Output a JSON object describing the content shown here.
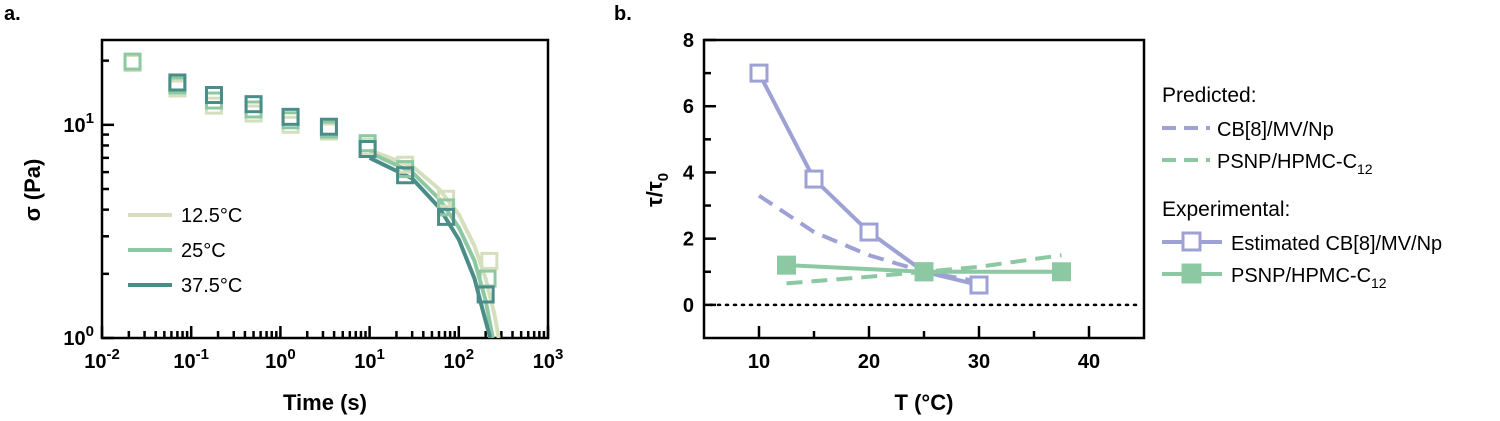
{
  "panel_labels": {
    "a": "a.",
    "b": "b."
  },
  "chart_data": [
    {
      "type": "scatter",
      "panel": "a",
      "xlabel": "Time (s)",
      "ylabel": "σ (Pa)",
      "xscale": "log",
      "yscale": "log",
      "xlim": [
        0.01,
        1000
      ],
      "ylim": [
        1,
        25
      ],
      "xtick_labels": [
        {
          "base": "10",
          "exp": "-2",
          "value": 0.01
        },
        {
          "base": "10",
          "exp": "-1",
          "value": 0.1
        },
        {
          "base": "10",
          "exp": "0",
          "value": 1
        },
        {
          "base": "10",
          "exp": "1",
          "value": 10
        },
        {
          "base": "10",
          "exp": "2",
          "value": 100
        },
        {
          "base": "10",
          "exp": "3",
          "value": 1000
        }
      ],
      "ytick_labels": [
        {
          "base": "10",
          "exp": "0",
          "value": 1
        },
        {
          "base": "10",
          "exp": "1",
          "value": 10
        }
      ],
      "legend_position": "lower-left",
      "grid": false,
      "series": [
        {
          "name": "12.5°C",
          "color": "#d6dfbd",
          "x": [
            0.022,
            0.07,
            0.18,
            0.5,
            1.3,
            3.5,
            9.5,
            25,
            72,
            220
          ],
          "y": [
            19.5,
            14.8,
            12.3,
            11.3,
            10.0,
            9.3,
            7.9,
            6.5,
            4.5,
            2.3
          ],
          "fit_x": [
            10,
            30,
            60,
            100,
            150,
            200,
            250,
            280
          ],
          "fit_y": [
            7.6,
            6.4,
            5.0,
            3.8,
            2.7,
            1.9,
            1.3,
            1.0
          ]
        },
        {
          "name": "25°C",
          "color": "#8cc8a2",
          "x": [
            0.022,
            0.07,
            0.18,
            0.5,
            1.3,
            3.5,
            9.5,
            25,
            72,
            210
          ],
          "y": [
            19.8,
            15.3,
            13.0,
            11.8,
            10.5,
            9.5,
            8.2,
            6.2,
            4.1,
            1.9
          ],
          "fit_x": [
            10,
            30,
            60,
            100,
            150,
            200,
            240
          ],
          "fit_y": [
            7.4,
            6.0,
            4.5,
            3.3,
            2.3,
            1.5,
            1.0
          ]
        },
        {
          "name": "37.5°C",
          "color": "#4a8c87",
          "x": [
            0.07,
            0.18,
            0.5,
            1.3,
            3.5,
            9.5,
            25,
            72,
            200
          ],
          "y": [
            15.8,
            13.8,
            12.5,
            10.9,
            9.8,
            7.7,
            5.8,
            3.7,
            1.6
          ],
          "fit_x": [
            10,
            30,
            60,
            100,
            150,
            190,
            225
          ],
          "fit_y": [
            7.0,
            5.6,
            4.1,
            2.9,
            1.9,
            1.3,
            1.0
          ]
        }
      ]
    },
    {
      "type": "line",
      "panel": "b",
      "xlabel": "T (°C)",
      "ylabel": "τ/τ",
      "ylabel_sub": "0",
      "xlim": [
        5,
        45
      ],
      "ylim": [
        -1,
        8
      ],
      "xticks": [
        10,
        20,
        30,
        40
      ],
      "yticks": [
        0,
        2,
        4,
        6,
        8
      ],
      "zero_line": true,
      "grid": false,
      "legend_position": "right outside",
      "legend": {
        "predicted_heading": "Predicted:",
        "experimental_heading": "Experimental:",
        "pred_cb8": "CB[8]/MV/Np",
        "pred_psnp": "PSNP/HPMC-C",
        "pred_psnp_sub": "12",
        "exp_cb8": "Estimated CB[8]/MV/Np",
        "exp_psnp": "PSNP/HPMC-C",
        "exp_psnp_sub": "12"
      },
      "series": [
        {
          "name": "CB[8]/MV/Np",
          "group": "Predicted",
          "style": "dashed",
          "color": "#9ea1d4",
          "x": [
            10,
            15,
            20,
            25,
            30
          ],
          "y": [
            3.3,
            2.2,
            1.5,
            1.0,
            0.7
          ]
        },
        {
          "name": "PSNP/HPMC-C12",
          "group": "Predicted",
          "style": "dashed",
          "color": "#8cc8a2",
          "x": [
            12.5,
            20,
            25,
            30,
            37.5
          ],
          "y": [
            0.65,
            0.85,
            1.0,
            1.15,
            1.5
          ]
        },
        {
          "name": "Estimated CB[8]/MV/Np",
          "group": "Experimental",
          "style": "solid-open-square",
          "color": "#9ea1d4",
          "x": [
            10,
            15,
            20,
            25,
            30
          ],
          "y": [
            7.0,
            3.8,
            2.2,
            1.0,
            0.6
          ]
        },
        {
          "name": "PSNP/HPMC-C12",
          "group": "Experimental",
          "style": "solid-filled-square",
          "color": "#8cc8a2",
          "x": [
            12.5,
            25,
            37.5
          ],
          "y": [
            1.2,
            1.0,
            1.0
          ]
        }
      ]
    }
  ]
}
